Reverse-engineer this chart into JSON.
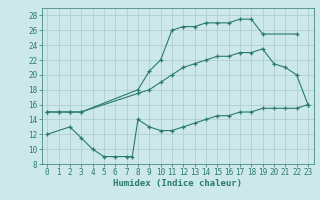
{
  "line1_x": [
    0,
    1,
    2,
    3,
    8,
    9,
    10,
    11,
    12,
    13,
    14,
    15,
    16,
    17,
    18,
    19,
    22
  ],
  "line1_y": [
    15,
    15,
    15,
    15,
    18,
    20.5,
    22,
    26,
    26.5,
    26.5,
    27,
    27,
    27,
    27.5,
    27.5,
    25.5,
    25.5
  ],
  "line2_x": [
    0,
    1,
    2,
    3,
    8,
    9,
    10,
    11,
    12,
    13,
    14,
    15,
    16,
    17,
    18,
    19,
    20,
    21,
    22,
    23
  ],
  "line2_y": [
    15,
    15,
    15,
    15,
    17.5,
    18,
    19,
    20,
    21,
    21.5,
    22,
    22.5,
    22.5,
    23,
    23,
    23.5,
    21.5,
    21,
    20,
    16
  ],
  "line3_x": [
    0,
    2,
    3,
    4,
    5,
    6,
    7,
    7.5,
    8,
    9,
    10,
    11,
    12,
    13,
    14,
    15,
    16,
    17,
    18,
    19,
    20,
    21,
    22,
    23
  ],
  "line3_y": [
    12,
    13,
    11.5,
    10,
    9,
    9,
    9,
    9,
    14,
    13,
    12.5,
    12.5,
    13,
    13.5,
    14,
    14.5,
    14.5,
    15,
    15,
    15.5,
    15.5,
    15.5,
    15.5,
    16
  ],
  "color": "#2a7a6e",
  "bg_color": "#cce8e8",
  "grid_color": "#aacccc",
  "xlabel": "Humidex (Indice chaleur)",
  "xlim": [
    -0.5,
    23.5
  ],
  "ylim": [
    8,
    29
  ],
  "xticks": [
    0,
    1,
    2,
    3,
    4,
    5,
    6,
    7,
    8,
    9,
    10,
    11,
    12,
    13,
    14,
    15,
    16,
    17,
    18,
    19,
    20,
    21,
    22,
    23
  ],
  "yticks": [
    8,
    10,
    12,
    14,
    16,
    18,
    20,
    22,
    24,
    26,
    28
  ],
  "tick_fontsize": 5.5,
  "label_fontsize": 6.5
}
